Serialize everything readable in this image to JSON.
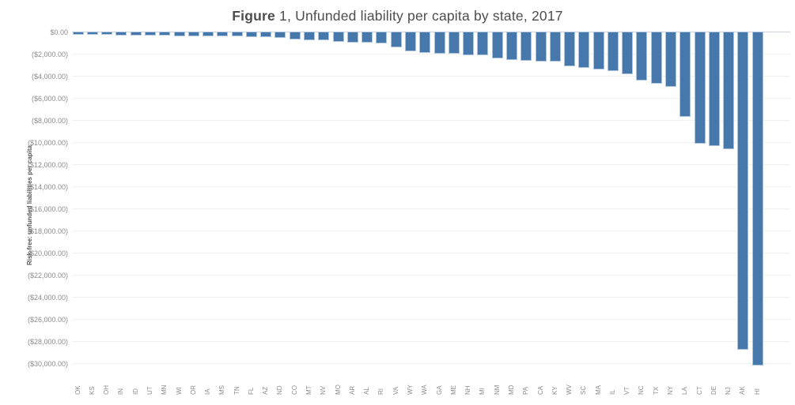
{
  "title": {
    "prefix_bold": "Figure",
    "rest": " 1, Unfunded liability per capita by state, 2017"
  },
  "colors": {
    "bar_fill": "#4678ac",
    "bar_border": "#aec4dd",
    "gridline": "#f0f0f0",
    "zero_line": "#c9d1d9",
    "title_text": "#4d4d4d",
    "axis_text": "#8c8c8c",
    "y_title_text": "#595959"
  },
  "chart_data": {
    "type": "bar",
    "title": "Figure 1, Unfunded liability per capita by state, 2017",
    "xlabel": "",
    "ylabel": "Risk-free: unfunded liabilities per capita",
    "ylim": [
      -30000,
      0
    ],
    "y_tick_step": 2000,
    "grid": true,
    "legend": "none",
    "y_tick_labels": [
      "$0.00",
      "($2,000.00)",
      "($4,000.00)",
      "($6,000.00)",
      "($8,000.00)",
      "($10,000.00)",
      "($12,000.00)",
      "($14,000.00)",
      "($16,000.00)",
      "($18,000.00)",
      "($20,000.00)",
      "($22,000.00)",
      "($24,000.00)",
      "($26,000.00)",
      "($28,000.00)",
      "($30,000.00)"
    ],
    "categories": [
      "OK",
      "KS",
      "OH",
      "IN",
      "ID",
      "UT",
      "MN",
      "WI",
      "OR",
      "IA",
      "MS",
      "TN",
      "FL",
      "AZ",
      "ND",
      "CO",
      "MT",
      "NV",
      "MO",
      "AR",
      "AL",
      "RI",
      "VA",
      "WY",
      "WA",
      "GA",
      "ME",
      "NH",
      "MI",
      "NM",
      "MD",
      "PA",
      "CA",
      "KY",
      "WV",
      "SC",
      "MA",
      "IL",
      "VT",
      "NC",
      "TX",
      "NY",
      "LA",
      "CT",
      "DE",
      "NJ",
      "AK",
      "HI"
    ],
    "values": [
      -250,
      -260,
      -290,
      -320,
      -330,
      -350,
      -380,
      -400,
      -420,
      -440,
      -450,
      -460,
      -470,
      -490,
      -600,
      -740,
      -770,
      -780,
      -920,
      -1000,
      -1010,
      -1060,
      -1460,
      -1770,
      -1890,
      -1980,
      -2000,
      -2120,
      -2130,
      -2460,
      -2550,
      -2630,
      -2700,
      -2730,
      -3130,
      -3300,
      -3410,
      -3550,
      -3840,
      -4390,
      -4720,
      -5030,
      -7720,
      -10140,
      -10380,
      -10660,
      -28800,
      -30180
    ]
  }
}
